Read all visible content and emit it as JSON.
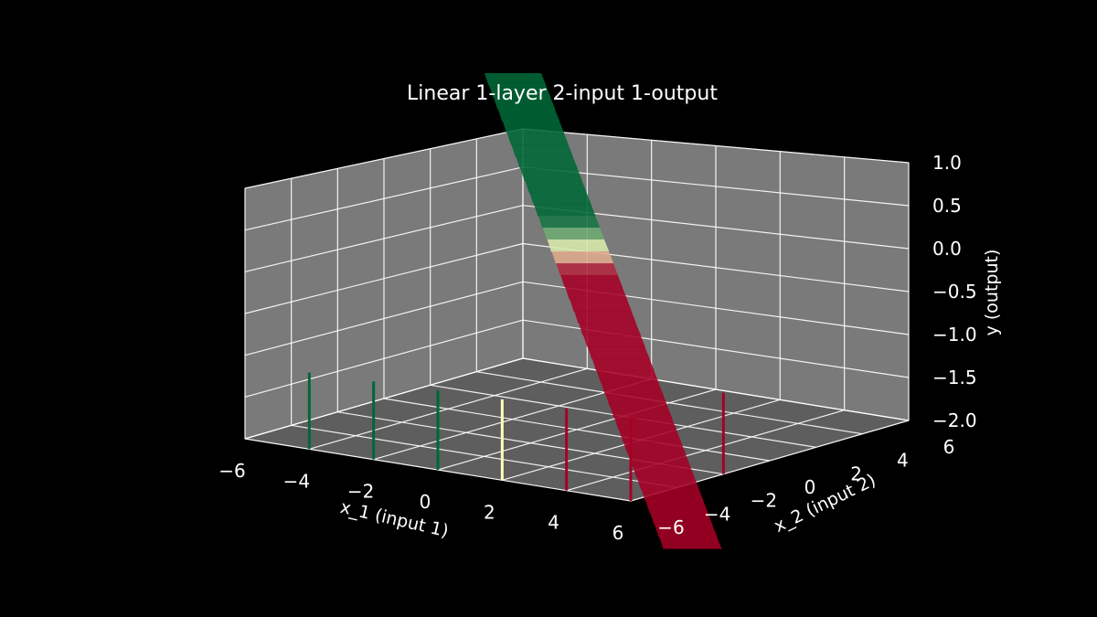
{
  "chart_data": {
    "type": "surface-3d",
    "title": "Linear 1-layer 2-input 1-output",
    "xlabel": "x_1 (input 1)",
    "ylabel": "x_2 (input 2)",
    "zlabel": "y (output)",
    "xlim": [
      -6,
      6
    ],
    "ylim": [
      -6,
      6
    ],
    "zlim": [
      -2.0,
      1.0
    ],
    "x_ticks": [
      "−6",
      "−4",
      "−2",
      "0",
      "2",
      "4",
      "6"
    ],
    "y_ticks": [
      "−6",
      "−4",
      "−2",
      "0",
      "2",
      "4",
      "6"
    ],
    "z_ticks": [
      "−2.0",
      "−1.5",
      "−1.0",
      "−0.5",
      "0.0",
      "0.5",
      "1.0"
    ],
    "grid": true,
    "colormap": "RdYlGn_r",
    "colors": {
      "background": "#000000",
      "pane": "#7a7a7a",
      "grid": "#ffffff",
      "high": "#006837",
      "mid": "#ffffbf",
      "low": "#a50026"
    },
    "training_points": [
      {
        "x1": -4,
        "x2": -6,
        "y": 1
      },
      {
        "x1": -2,
        "x2": -6,
        "y": 1
      },
      {
        "x1": 0,
        "x2": -6,
        "y": 1
      },
      {
        "x1": 2,
        "x2": -6,
        "y": 0
      },
      {
        "x1": 4,
        "x2": -6,
        "y": -1
      },
      {
        "x1": 6,
        "x2": -6,
        "y": -1
      },
      {
        "x1": 6,
        "x2": -2,
        "y": -1
      }
    ]
  }
}
